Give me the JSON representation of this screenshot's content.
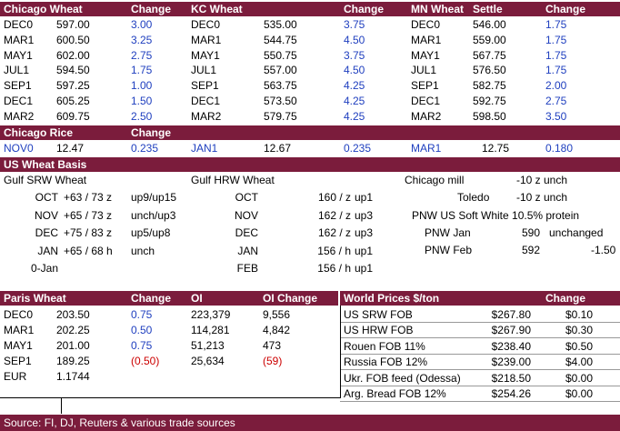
{
  "wheat_futures": {
    "headers": {
      "chi": "Chicago Wheat",
      "chi_chg": "Change",
      "kc": "KC Wheat",
      "kc_chg": "Change",
      "mn": "MN Wheat",
      "mn_settle": "Settle",
      "mn_chg": "Change"
    },
    "rows": [
      {
        "c1": "DEC0",
        "c2": "597.00",
        "c3": "3.00",
        "c4": "DEC0",
        "c5": "535.00",
        "c6": "3.75",
        "c7": "DEC0",
        "c8": "546.00",
        "c9": "1.75"
      },
      {
        "c1": "MAR1",
        "c2": "600.50",
        "c3": "3.25",
        "c4": "MAR1",
        "c5": "544.75",
        "c6": "4.50",
        "c7": "MAR1",
        "c8": "559.00",
        "c9": "1.75"
      },
      {
        "c1": "MAY1",
        "c2": "602.00",
        "c3": "2.75",
        "c4": "MAY1",
        "c5": "550.75",
        "c6": "3.75",
        "c7": "MAY1",
        "c8": "567.75",
        "c9": "1.75"
      },
      {
        "c1": "JUL1",
        "c2": "594.50",
        "c3": "1.75",
        "c4": "JUL1",
        "c5": "557.00",
        "c6": "4.50",
        "c7": "JUL1",
        "c8": "576.50",
        "c9": "1.75"
      },
      {
        "c1": "SEP1",
        "c2": "597.25",
        "c3": "1.00",
        "c4": "SEP1",
        "c5": "563.75",
        "c6": "4.25",
        "c7": "SEP1",
        "c8": "582.75",
        "c9": "2.00"
      },
      {
        "c1": "DEC1",
        "c2": "605.25",
        "c3": "1.50",
        "c4": "DEC1",
        "c5": "573.50",
        "c6": "4.25",
        "c7": "DEC1",
        "c8": "592.75",
        "c9": "2.75"
      },
      {
        "c1": "MAR2",
        "c2": "609.75",
        "c3": "2.50",
        "c4": "MAR2",
        "c5": "579.75",
        "c6": "4.25",
        "c7": "MAR2",
        "c8": "598.50",
        "c9": "3.50"
      }
    ]
  },
  "rice": {
    "title": "Chicago Rice",
    "change_label": "Change",
    "row": {
      "m1": "NOV0",
      "p1": "12.47",
      "c1": "0.235",
      "m2": "JAN1",
      "p2": "12.67",
      "c2": "0.235",
      "m3": "MAR1",
      "p3": "12.75",
      "c3": "0.180"
    }
  },
  "basis": {
    "title": "US Wheat Basis",
    "srw_title": "Gulf SRW Wheat",
    "hrw_title": "Gulf HRW Wheat",
    "srw": [
      {
        "month": "OCT",
        "value": "+63 / 73 z",
        "note": "up9/up15"
      },
      {
        "month": "NOV",
        "value": "+65 / 73 z",
        "note": "unch/up3"
      },
      {
        "month": "DEC",
        "value": "+75 / 83 z",
        "note": "up5/up8"
      },
      {
        "month": "JAN",
        "value": "+65 / 68 h",
        "note": "unch"
      },
      {
        "month": "0-Jan",
        "value": "",
        "note": ""
      }
    ],
    "hrw": [
      {
        "month": "OCT",
        "value": "160 / z",
        "note": "up1"
      },
      {
        "month": "NOV",
        "value": "162 / z",
        "note": "up3"
      },
      {
        "month": "DEC",
        "value": "162 / z",
        "note": "up3"
      },
      {
        "month": "JAN",
        "value": "156 / h",
        "note": "up1"
      },
      {
        "month": "FEB",
        "value": "156 / h",
        "note": "up1"
      }
    ],
    "mill": {
      "label": "Chicago mill",
      "value": "-10 z unch"
    },
    "toledo": {
      "label": "Toledo",
      "value": "-10 z unch"
    },
    "pnw_title": "PNW US Soft White 10.5% protein",
    "pnw_jan": {
      "label": "PNW Jan",
      "value": "590",
      "note": "unchanged"
    },
    "pnw_feb": {
      "label": "PNW Feb",
      "value": "592",
      "note": "-1.50"
    }
  },
  "paris": {
    "headers": {
      "name": "Paris Wheat",
      "chg": "Change",
      "oi": "OI",
      "oichg": "OI Change"
    },
    "rows": [
      {
        "m": "DEC0",
        "p": "203.50",
        "c": "0.75",
        "oi": "223,379",
        "oic": "9,556",
        "neg": false
      },
      {
        "m": "MAR1",
        "p": "202.25",
        "c": "0.50",
        "oi": "114,281",
        "oic": "4,842",
        "neg": false
      },
      {
        "m": "MAY1",
        "p": "201.00",
        "c": "0.75",
        "oi": "51,213",
        "oic": "473",
        "neg": false
      },
      {
        "m": "SEP1",
        "p": "189.25",
        "c": "(0.50)",
        "oi": "25,634",
        "oic": "(59)",
        "neg": true
      }
    ],
    "eur": {
      "label": "EUR",
      "value": "1.1744"
    }
  },
  "world": {
    "headers": {
      "name": "World Prices $/ton",
      "chg": "Change"
    },
    "rows": [
      {
        "n": "US SRW FOB",
        "p": "$267.80",
        "c": "$0.10"
      },
      {
        "n": "US HRW FOB",
        "p": "$267.90",
        "c": "$0.30"
      },
      {
        "n": "Rouen FOB 11%",
        "p": "$238.40",
        "c": "$0.50"
      },
      {
        "n": "Russia FOB 12%",
        "p": "$239.00",
        "c": "$4.00"
      },
      {
        "n": "Ukr. FOB feed (Odessa)",
        "p": "$218.50",
        "c": "$0.00"
      },
      {
        "n": "Arg. Bread FOB 12%",
        "p": "$254.26",
        "c": "$0.00"
      }
    ]
  },
  "source": "Source: FI, DJ, Reuters & various trade sources",
  "colors": {
    "header_bg": "#7b1c3c",
    "positive": "#1f3fbf",
    "negative": "#cc0000"
  }
}
